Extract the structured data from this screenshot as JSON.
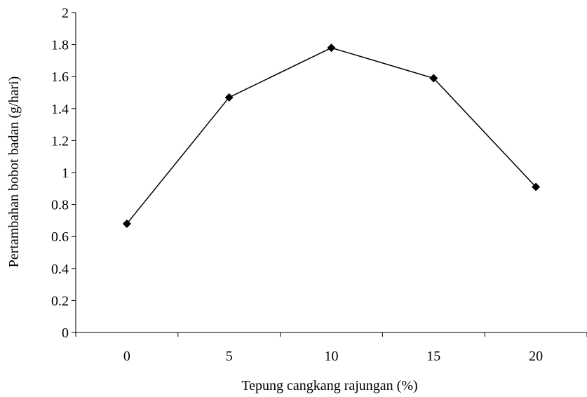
{
  "chart_data": {
    "type": "line",
    "title": "",
    "xlabel": "Tepung cangkang rajungan (%)",
    "ylabel": "Pertambahan bobot badan (g/hari)",
    "categories": [
      "0",
      "5",
      "10",
      "15",
      "20"
    ],
    "series": [
      {
        "values": [
          0.68,
          1.47,
          1.78,
          1.59,
          0.91
        ]
      }
    ],
    "ylim": [
      0,
      2
    ],
    "yticks": [
      "0",
      "0.2",
      "0.4",
      "0.6",
      "0.8",
      "1",
      "1.2",
      "1.4",
      "1.6",
      "1.8",
      "2"
    ],
    "grid": false,
    "legend": "none",
    "marker": "diamond",
    "line_color": "#000000"
  }
}
